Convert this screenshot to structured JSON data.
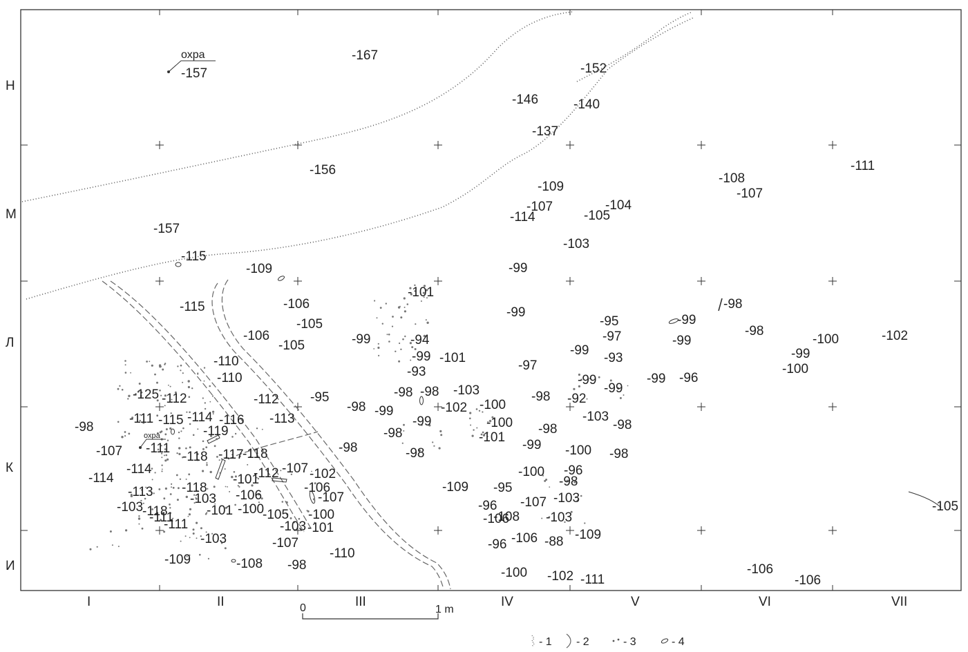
{
  "rows": [
    {
      "label": "Н"
    },
    {
      "label": "М"
    },
    {
      "label": "Л"
    },
    {
      "label": "К"
    },
    {
      "label": "И"
    }
  ],
  "columns": [
    {
      "label": "I"
    },
    {
      "label": "II"
    },
    {
      "label": "III"
    },
    {
      "label": "IV"
    },
    {
      "label": "V"
    },
    {
      "label": "VI"
    },
    {
      "label": "VII"
    }
  ],
  "scale": {
    "zero": "0",
    "end": "1 m"
  },
  "labels": {
    "ochre_top": "охра",
    "ochre_bottom": "охра"
  },
  "legend": [
    {
      "text": "- 1"
    },
    {
      "text": "- 2"
    },
    {
      "text": "- 3"
    },
    {
      "text": "- 4"
    }
  ],
  "depths": [
    "-157",
    "-167",
    "-152",
    "-146",
    "-140",
    "-137",
    "-156",
    "-111",
    "-108",
    "-107",
    "-109",
    "-107",
    "-114",
    "-104",
    "-105",
    "-103",
    "-157",
    "-115",
    "-109",
    "-99",
    "-101",
    "-115",
    "-106",
    "-105",
    "-106",
    "-105",
    "-99",
    "-99",
    "-98",
    "-95",
    "-97",
    "-99",
    "-99",
    "-98",
    "-100",
    "-102",
    "-99",
    "-94",
    "-99",
    "-101",
    "-93",
    "-99",
    "-93",
    "-97",
    "-100",
    "-110",
    "-110",
    "-99",
    "-99",
    "-99",
    "-96",
    "-125",
    "-112",
    "-112",
    "-95",
    "-98",
    "-98",
    "-98",
    "-103",
    "-98",
    "-92",
    "-99",
    "-102",
    "-100",
    "-103",
    "-98",
    "-111",
    "-115",
    "-114",
    "-116",
    "-113",
    "-99",
    "-100",
    "-98",
    "-119",
    "-98",
    "-101",
    "-99",
    "-98",
    "-100",
    "-98",
    "-107",
    "-111",
    "-118",
    "-117",
    "-118",
    "-98",
    "-98",
    "-114",
    "-114",
    "-107",
    "-102",
    "-100",
    "-96",
    "-98",
    "-118",
    "-101",
    "-112",
    "-106",
    "-103",
    "-113",
    "-106",
    "-95",
    "-107",
    "-103",
    "-109",
    "-103",
    "-111",
    "-101",
    "-100",
    "-105",
    "-100",
    "-96",
    "-107",
    "-118",
    "-111",
    "-106",
    "-108",
    "-103",
    "-103",
    "-107",
    "-101",
    "-103",
    "-96",
    "-106",
    "-88",
    "-109",
    "-110",
    "-109",
    "-108",
    "-98",
    "-100",
    "-102",
    "-111",
    "-106",
    "-106",
    "-105",
    "-104",
    "-99"
  ]
}
